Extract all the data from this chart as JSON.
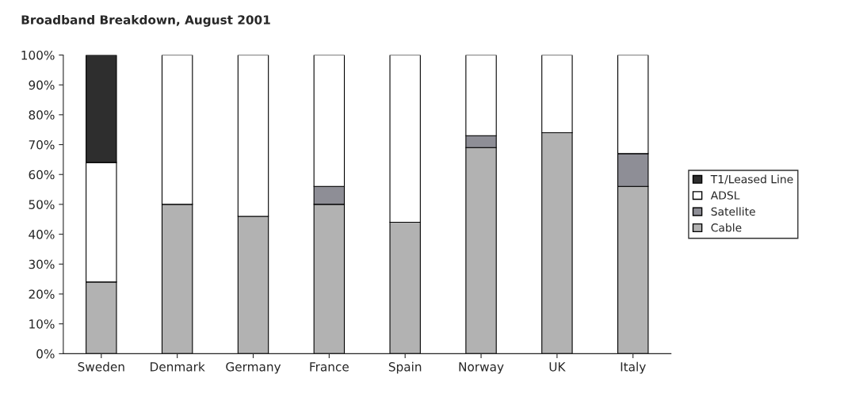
{
  "chart_data": {
    "type": "bar",
    "title": "Broadband Breakdown, August 2001",
    "categories": [
      "Sweden",
      "Denmark",
      "Germany",
      "France",
      "Spain",
      "Norway",
      "UK",
      "Italy"
    ],
    "stacked": true,
    "series": [
      {
        "name": "Cable",
        "color": "#b2b2b2",
        "values": [
          24,
          50,
          46,
          50,
          44,
          69,
          74,
          56
        ]
      },
      {
        "name": "Satellite",
        "color": "#8e8e96",
        "values": [
          null,
          null,
          null,
          6,
          null,
          4,
          null,
          11
        ]
      },
      {
        "name": "ADSL",
        "color": "#ffffff",
        "values": [
          40,
          50,
          54,
          44,
          56,
          27,
          26,
          33
        ]
      },
      {
        "name": "T1/Leased Line",
        "color": "#2e2e2e",
        "values": [
          36,
          null,
          null,
          null,
          null,
          null,
          null,
          null
        ]
      }
    ],
    "ylim": [
      0,
      100
    ],
    "yticks": [
      {
        "value": 0,
        "label": "0%"
      },
      {
        "value": 10,
        "label": "10%"
      },
      {
        "value": 20,
        "label": "20%"
      },
      {
        "value": 30,
        "label": "30%"
      },
      {
        "value": 40,
        "label": "40%"
      },
      {
        "value": 50,
        "label": "50%"
      },
      {
        "value": 60,
        "label": "60%"
      },
      {
        "value": 70,
        "label": "70%"
      },
      {
        "value": 80,
        "label": "80%"
      },
      {
        "value": 90,
        "label": "90%"
      },
      {
        "value": 100,
        "label": "100%"
      }
    ],
    "grid": false,
    "legend": "right"
  }
}
